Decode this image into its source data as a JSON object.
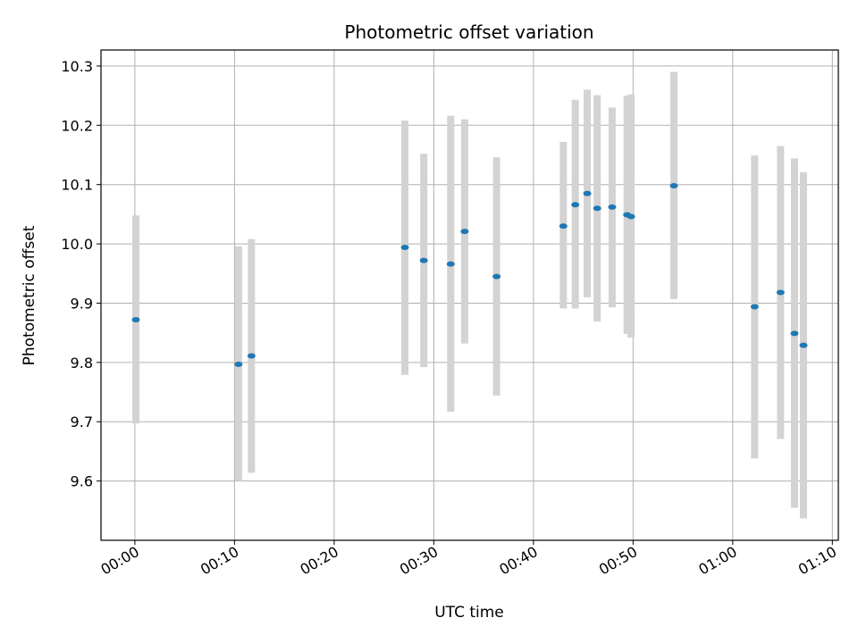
{
  "chart_data": {
    "type": "scatter",
    "title": "Photometric offset variation",
    "xlabel": "UTC time",
    "ylabel": "Photometric offset",
    "x_unit": "HH:MM",
    "xlim": [
      "23:56.6",
      "01:10.6"
    ],
    "ylim": [
      9.5,
      10.327
    ],
    "xticks": [
      "00:00",
      "00:10",
      "00:20",
      "00:30",
      "00:40",
      "00:50",
      "01:00",
      "01:10"
    ],
    "yticks": [
      9.6,
      9.7,
      9.8,
      9.9,
      10.0,
      10.1,
      10.2,
      10.3
    ],
    "grid": true,
    "point_color": "#1f77b4",
    "errorbar_color": "#d3d3d3",
    "points": [
      {
        "x": "00:00.1",
        "y": 9.872,
        "ylow": 9.697,
        "yhigh": 10.048
      },
      {
        "x": "00:10.4",
        "y": 9.797,
        "ylow": 9.6,
        "yhigh": 9.996
      },
      {
        "x": "00:11.7",
        "y": 9.811,
        "ylow": 9.614,
        "yhigh": 10.008
      },
      {
        "x": "00:27.1",
        "y": 9.994,
        "ylow": 9.779,
        "yhigh": 10.208
      },
      {
        "x": "00:29.0",
        "y": 9.972,
        "ylow": 9.792,
        "yhigh": 10.152
      },
      {
        "x": "00:31.7",
        "y": 9.966,
        "ylow": 9.717,
        "yhigh": 10.216
      },
      {
        "x": "00:33.1",
        "y": 10.021,
        "ylow": 9.832,
        "yhigh": 10.21
      },
      {
        "x": "00:36.3",
        "y": 9.945,
        "ylow": 9.744,
        "yhigh": 10.146
      },
      {
        "x": "00:43.0",
        "y": 10.03,
        "ylow": 9.891,
        "yhigh": 10.172
      },
      {
        "x": "00:44.2",
        "y": 10.066,
        "ylow": 9.891,
        "yhigh": 10.243
      },
      {
        "x": "00:45.4",
        "y": 10.085,
        "ylow": 9.91,
        "yhigh": 10.26
      },
      {
        "x": "00:46.4",
        "y": 10.06,
        "ylow": 9.869,
        "yhigh": 10.251
      },
      {
        "x": "00:47.9",
        "y": 10.062,
        "ylow": 9.893,
        "yhigh": 10.23
      },
      {
        "x": "00:49.4",
        "y": 10.049,
        "ylow": 9.848,
        "yhigh": 10.25
      },
      {
        "x": "00:49.8",
        "y": 10.046,
        "ylow": 9.842,
        "yhigh": 10.252
      },
      {
        "x": "00:54.1",
        "y": 10.098,
        "ylow": 9.907,
        "yhigh": 10.29
      },
      {
        "x": "01:02.2",
        "y": 9.894,
        "ylow": 9.638,
        "yhigh": 10.149
      },
      {
        "x": "01:04.8",
        "y": 9.918,
        "ylow": 9.671,
        "yhigh": 10.165
      },
      {
        "x": "01:06.2",
        "y": 9.849,
        "ylow": 9.555,
        "yhigh": 10.144
      },
      {
        "x": "01:07.1",
        "y": 9.829,
        "ylow": 9.537,
        "yhigh": 10.121
      }
    ]
  }
}
